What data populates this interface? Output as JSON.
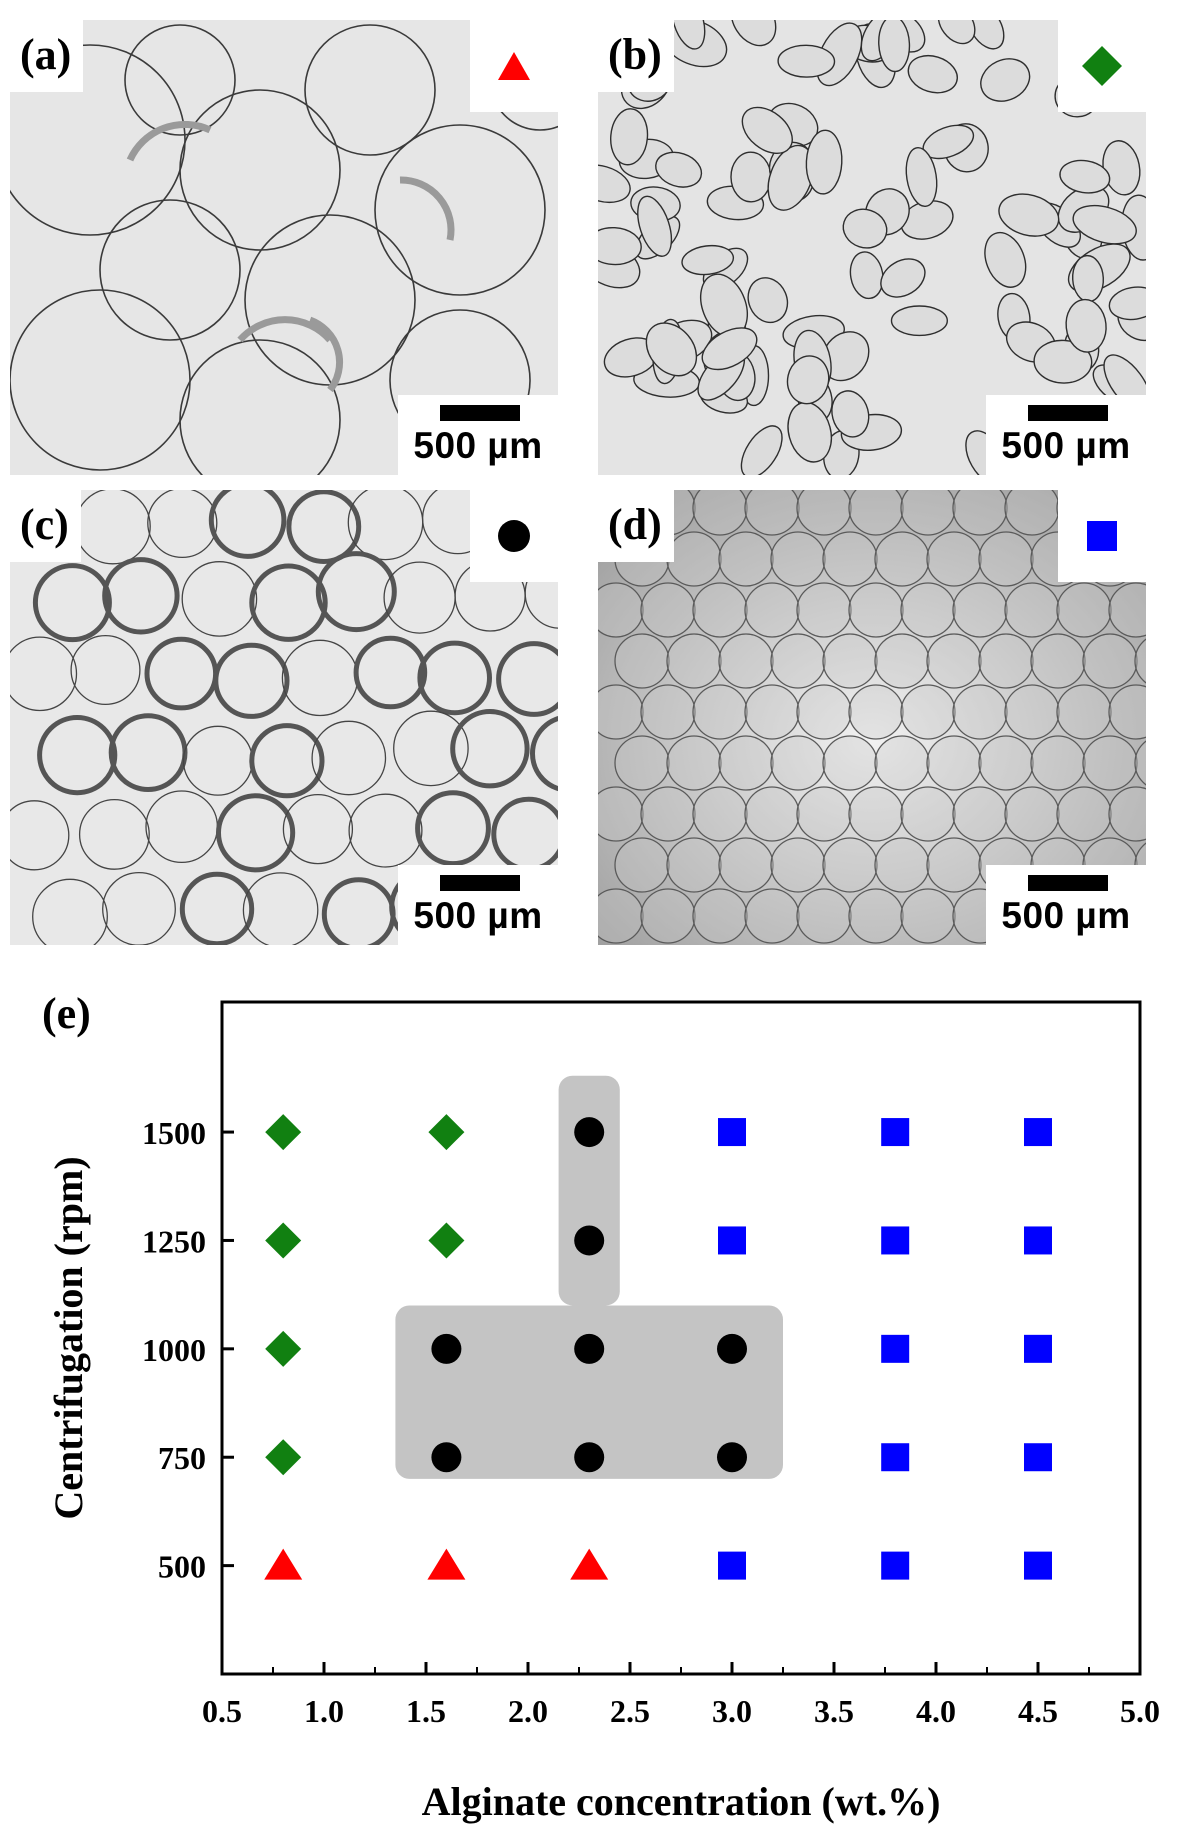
{
  "panels": [
    {
      "label": "(a)",
      "marker": "triangle",
      "color": "#ff0000",
      "scale": "500 µm"
    },
    {
      "label": "(b)",
      "marker": "diamond",
      "color": "#118011",
      "scale": "500 µm"
    },
    {
      "label": "(c)",
      "marker": "circle",
      "color": "#000000",
      "scale": "500 µm"
    },
    {
      "label": "(d)",
      "marker": "square",
      "color": "#0000ff",
      "scale": "500 µm"
    }
  ],
  "chart_data": {
    "type": "scatter",
    "panel_label": "(e)",
    "xlabel": "Alginate concentration (wt.%)",
    "ylabel": "Centrifugation (rpm)",
    "xlim": [
      0.5,
      5.0
    ],
    "ylim": [
      250,
      1800
    ],
    "xticks": [
      "0.5",
      "1.0",
      "1.5",
      "2.0",
      "2.5",
      "3.0",
      "3.5",
      "4.0",
      "4.5",
      "5.0"
    ],
    "yticks": [
      "500",
      "750",
      "1000",
      "1250",
      "1500"
    ],
    "grid": false,
    "legend": "none",
    "shaded_region": {
      "color": "#c4c4c4",
      "lower_block": {
        "x": [
          1.35,
          3.25
        ],
        "y": [
          700,
          1100
        ]
      },
      "upper_stem": {
        "x": [
          2.15,
          2.45
        ],
        "y": [
          1100,
          1630
        ]
      }
    },
    "series": [
      {
        "marker": "triangle",
        "color": "#ff0000",
        "points": [
          [
            0.8,
            500
          ],
          [
            1.6,
            500
          ],
          [
            2.3,
            500
          ]
        ]
      },
      {
        "marker": "diamond",
        "color": "#118011",
        "points": [
          [
            0.8,
            750
          ],
          [
            0.8,
            1000
          ],
          [
            0.8,
            1250
          ],
          [
            0.8,
            1500
          ],
          [
            1.6,
            1250
          ],
          [
            1.6,
            1500
          ]
        ]
      },
      {
        "marker": "circle",
        "color": "#000000",
        "points": [
          [
            1.6,
            750
          ],
          [
            1.6,
            1000
          ],
          [
            2.3,
            750
          ],
          [
            2.3,
            1000
          ],
          [
            2.3,
            1250
          ],
          [
            2.3,
            1500
          ],
          [
            3.0,
            750
          ],
          [
            3.0,
            1000
          ]
        ]
      },
      {
        "marker": "square",
        "color": "#0000ff",
        "points": [
          [
            3.0,
            500
          ],
          [
            3.0,
            1250
          ],
          [
            3.0,
            1500
          ],
          [
            3.8,
            500
          ],
          [
            3.8,
            750
          ],
          [
            3.8,
            1000
          ],
          [
            3.8,
            1250
          ],
          [
            3.8,
            1500
          ],
          [
            4.5,
            500
          ],
          [
            4.5,
            750
          ],
          [
            4.5,
            1000
          ],
          [
            4.5,
            1250
          ],
          [
            4.5,
            1500
          ]
        ]
      }
    ]
  }
}
